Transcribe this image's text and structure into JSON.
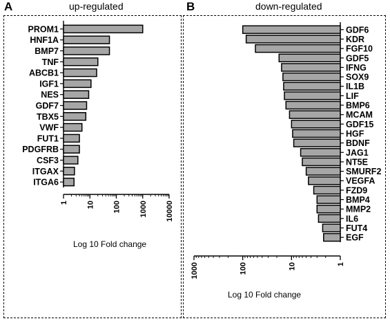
{
  "chart_data": [
    {
      "panel": "A",
      "type": "bar",
      "orientation": "horizontal",
      "title": "up-regulated",
      "xlabel": "Log 10 Fold change",
      "xscale": "log",
      "xlim": [
        1,
        10000
      ],
      "xticks": [
        "1",
        "10",
        "100",
        "1000",
        "10000"
      ],
      "categories": [
        "PROM1",
        "HNF1A",
        "BMP7",
        "TNF",
        "ABCB1",
        "IGF1",
        "NES",
        "GDF7",
        "TBX5",
        "VWF",
        "FUT1",
        "PDGFRB",
        "CSF3",
        "ITGAX",
        "ITGA6"
      ],
      "values": [
        1000,
        55,
        55,
        20,
        18,
        11,
        9,
        7.5,
        7,
        5,
        4,
        4,
        3.5,
        2.6,
        2.5
      ],
      "bar_color": "#a6a6a6"
    },
    {
      "panel": "B",
      "type": "bar",
      "orientation": "horizontal",
      "title": "down-regulated",
      "xlabel": "Log 10 Fold change",
      "xscale": "log",
      "xreversed": true,
      "xlim": [
        1000,
        1
      ],
      "xticks": [
        "1000",
        "100",
        "10",
        "1"
      ],
      "categories": [
        "GDF6",
        "KDR",
        "FGF10",
        "GDF5",
        "IFNG",
        "SOX9",
        "IL1B",
        "LIF",
        "BMP6",
        "MCAM",
        "GDF15",
        "HGF",
        "BDNF",
        "JAG1",
        "NT5E",
        "SMURF2",
        "VEGFA",
        "FZD9",
        "BMP4",
        "MMP2",
        "IL6",
        "FUT4",
        "EGF"
      ],
      "values": [
        100,
        85,
        55,
        18,
        16,
        15,
        14.5,
        14,
        13,
        11,
        10,
        9.5,
        9,
        6.5,
        6,
        5,
        4.5,
        3.5,
        3,
        3,
        2.8,
        2.3,
        2.2
      ],
      "bar_color": "#a6a6a6"
    }
  ]
}
